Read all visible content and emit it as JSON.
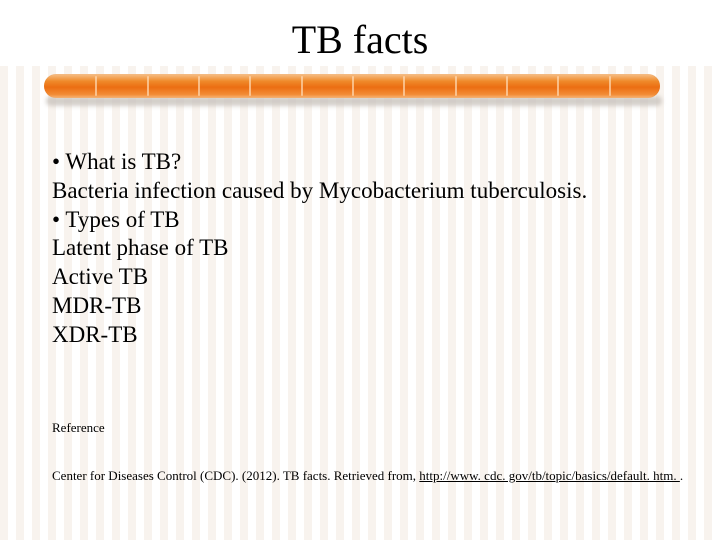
{
  "title": "TB facts",
  "bar": {
    "color_top": "#f7c08a",
    "color_mid": "#ec6e12",
    "color_bottom": "#f7b679",
    "shadow_color": "#c9c3bd",
    "tick_count": 11,
    "tick_color": "rgba(255,224,190,0.65)"
  },
  "content": {
    "bullet1": "•   What is TB?",
    "line1": "Bacteria infection caused by Mycobacterium tuberculosis.",
    "bullet2": "•   Types of TB",
    "line2": "Latent phase of TB",
    "line3": "Active TB",
    "line4": "MDR-TB",
    "line5": "XDR-TB"
  },
  "reference": {
    "heading": "Reference",
    "text_prefix": "Center for Diseases Control (CDC). (2012). TB facts. Retrieved from, ",
    "link_text": "http://www. cdc. gov/tb/topic/basics/default. htm. ",
    "suffix": "."
  },
  "style": {
    "background_stripe_a": "#f8f3ee",
    "background_stripe_b": "#ffffff",
    "title_fontsize": 40,
    "body_fontsize": 23,
    "ref_fontsize": 13,
    "text_color": "#000000"
  }
}
